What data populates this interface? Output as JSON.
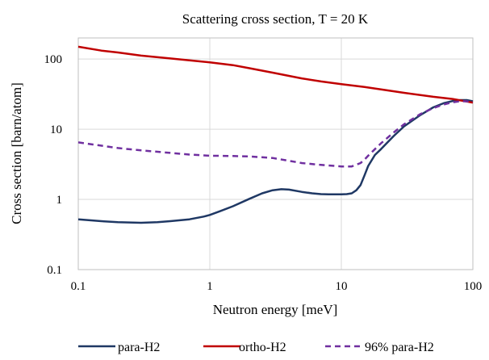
{
  "chart_data": {
    "type": "line",
    "title": "Scattering cross section, T = 20 K",
    "xlabel": "Neutron energy [meV]",
    "ylabel": "Cross section [barn/atom]",
    "xscale": "log",
    "yscale": "log",
    "xlim": [
      0.1,
      100
    ],
    "ylim": [
      0.1,
      200
    ],
    "x_ticks": [
      {
        "value": 0.1,
        "label": "0.1"
      },
      {
        "value": 1,
        "label": "1"
      },
      {
        "value": 10,
        "label": "10"
      },
      {
        "value": 100,
        "label": "100"
      }
    ],
    "y_ticks": [
      {
        "value": 0.1,
        "label": "0.1"
      },
      {
        "value": 1,
        "label": "1"
      },
      {
        "value": 10,
        "label": "10"
      },
      {
        "value": 100,
        "label": "100"
      }
    ],
    "grid": true,
    "legend_position": "bottom",
    "series": [
      {
        "name": "para-H2",
        "color": "#1f3864",
        "dash": "solid",
        "points": [
          [
            0.1,
            0.52
          ],
          [
            0.15,
            0.49
          ],
          [
            0.2,
            0.475
          ],
          [
            0.3,
            0.465
          ],
          [
            0.4,
            0.475
          ],
          [
            0.5,
            0.49
          ],
          [
            0.7,
            0.52
          ],
          [
            0.9,
            0.57
          ],
          [
            1.0,
            0.6
          ],
          [
            1.2,
            0.68
          ],
          [
            1.5,
            0.8
          ],
          [
            2.0,
            1.02
          ],
          [
            2.5,
            1.22
          ],
          [
            3.0,
            1.35
          ],
          [
            3.5,
            1.4
          ],
          [
            4.0,
            1.38
          ],
          [
            5.0,
            1.28
          ],
          [
            6.0,
            1.22
          ],
          [
            7.0,
            1.19
          ],
          [
            8.0,
            1.18
          ],
          [
            10.0,
            1.18
          ],
          [
            11.0,
            1.19
          ],
          [
            12.0,
            1.22
          ],
          [
            13.0,
            1.35
          ],
          [
            14.0,
            1.6
          ],
          [
            15.0,
            2.2
          ],
          [
            16.0,
            3.0
          ],
          [
            18.0,
            4.3
          ],
          [
            20.0,
            5.2
          ],
          [
            25.0,
            8.0
          ],
          [
            30.0,
            11.0
          ],
          [
            40.0,
            16.0
          ],
          [
            50.0,
            20.5
          ],
          [
            60.0,
            23.5
          ],
          [
            70.0,
            25.2
          ],
          [
            80.0,
            26.0
          ],
          [
            90.0,
            26.0
          ],
          [
            100.0,
            25.0
          ]
        ]
      },
      {
        "name": "ortho-H2",
        "color": "#c00000",
        "dash": "solid",
        "points": [
          [
            0.1,
            150
          ],
          [
            0.15,
            132
          ],
          [
            0.2,
            124
          ],
          [
            0.3,
            112
          ],
          [
            0.5,
            102
          ],
          [
            0.7,
            96
          ],
          [
            1.0,
            90
          ],
          [
            1.5,
            82
          ],
          [
            2.0,
            74
          ],
          [
            3.0,
            64
          ],
          [
            5.0,
            53
          ],
          [
            7.0,
            48
          ],
          [
            10.0,
            44
          ],
          [
            15.0,
            40
          ],
          [
            20.0,
            37
          ],
          [
            30.0,
            33
          ],
          [
            50.0,
            29
          ],
          [
            70.0,
            27
          ],
          [
            100.0,
            24
          ]
        ]
      },
      {
        "name": "96% para-H2",
        "color": "#7030a0",
        "dash": "dashed",
        "points": [
          [
            0.1,
            6.5
          ],
          [
            0.2,
            5.4
          ],
          [
            0.3,
            5.0
          ],
          [
            0.5,
            4.6
          ],
          [
            0.7,
            4.35
          ],
          [
            1.0,
            4.2
          ],
          [
            1.5,
            4.15
          ],
          [
            2.0,
            4.1
          ],
          [
            3.0,
            3.9
          ],
          [
            4.0,
            3.55
          ],
          [
            5.0,
            3.3
          ],
          [
            7.0,
            3.1
          ],
          [
            10.0,
            2.95
          ],
          [
            12.0,
            2.95
          ],
          [
            14.0,
            3.3
          ],
          [
            15.0,
            3.7
          ],
          [
            16.0,
            4.2
          ],
          [
            18.0,
            5.2
          ],
          [
            20.0,
            6.3
          ],
          [
            25.0,
            9.0
          ],
          [
            30.0,
            11.8
          ],
          [
            40.0,
            16.5
          ],
          [
            50.0,
            20.0
          ],
          [
            60.0,
            22.5
          ],
          [
            70.0,
            24.2
          ],
          [
            80.0,
            25.0
          ],
          [
            90.0,
            25.0
          ],
          [
            100.0,
            24.5
          ]
        ]
      }
    ]
  }
}
